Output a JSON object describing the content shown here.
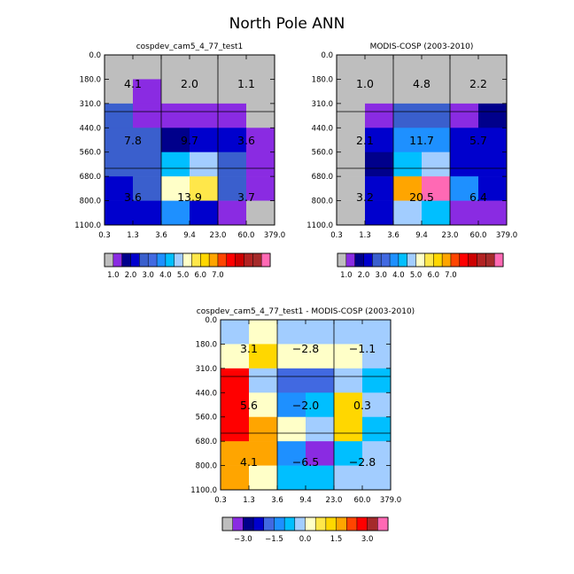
{
  "title": "North Pole ANN",
  "tau_ticks": [
    "0.3",
    "1.3",
    "3.6",
    "9.4",
    "23.0",
    "60.0",
    "379.0"
  ],
  "pres_ticks": [
    "0.0",
    "180.0",
    "310.0",
    "440.0",
    "560.0",
    "680.0",
    "800.0",
    "1100.0"
  ],
  "palettes": {
    "abs": [
      "#bebebe",
      "#8a2be2",
      "#00008b",
      "#0000cd",
      "#3a5fcd",
      "#4169e1",
      "#1e90ff",
      "#00bfff",
      "#a2cdff",
      "#ffffc8",
      "#ffe74a",
      "#ffd700",
      "#ffa500",
      "#ff4500",
      "#ff0000",
      "#cd0000",
      "#b22222",
      "#a52a2a",
      "#ff69b4"
    ],
    "diff": [
      "#bebebe",
      "#8a2be2",
      "#00008b",
      "#0000cd",
      "#4169e1",
      "#1e90ff",
      "#00bfff",
      "#a2cdff",
      "#ffffc8",
      "#ffe74a",
      "#ffd700",
      "#ffa500",
      "#ff4500",
      "#ff0000",
      "#a52a2a",
      "#ff69b4"
    ]
  },
  "chart_data": [
    {
      "type": "heatmap",
      "title": "cospdev_cam5_4_77_test1",
      "xlabel": "",
      "ylabel": "",
      "x_edges": [
        0.3,
        1.3,
        3.6,
        9.4,
        23.0,
        60.0,
        379.0
      ],
      "y_edges": [
        0.0,
        180.0,
        310.0,
        440.0,
        560.0,
        680.0,
        800.0,
        1100.0
      ],
      "palette": "abs",
      "cells": [
        [
          0,
          0,
          0,
          0,
          0,
          0
        ],
        [
          0,
          1,
          0,
          0,
          0,
          0
        ],
        [
          4,
          1,
          1,
          1,
          1,
          0
        ],
        [
          4,
          4,
          2,
          3,
          3,
          1
        ],
        [
          4,
          4,
          7,
          8,
          4,
          1
        ],
        [
          3,
          4,
          9,
          10,
          4,
          1
        ],
        [
          3,
          3,
          6,
          3,
          1,
          0
        ]
      ],
      "box_labels": [
        [
          "4.1",
          "2.0",
          "1.1"
        ],
        [
          "7.8",
          "9.7",
          "3.6"
        ],
        [
          "3.6",
          "13.9",
          "3.7"
        ]
      ],
      "colorbar_labels": [
        "1.0",
        "2.0",
        "3.0",
        "4.0",
        "5.0",
        "6.0",
        "7.0"
      ]
    },
    {
      "type": "heatmap",
      "title": "MODIS-COSP (2003-2010)",
      "xlabel": "",
      "ylabel": "",
      "x_edges": [
        0.3,
        1.3,
        3.6,
        9.4,
        23.0,
        60.0,
        379.0
      ],
      "y_edges": [
        0.0,
        180.0,
        310.0,
        440.0,
        560.0,
        680.0,
        800.0,
        1100.0
      ],
      "palette": "abs",
      "cells": [
        [
          0,
          0,
          0,
          0,
          0,
          0
        ],
        [
          0,
          0,
          0,
          0,
          0,
          0
        ],
        [
          0,
          1,
          4,
          4,
          1,
          2
        ],
        [
          0,
          3,
          6,
          6,
          3,
          3
        ],
        [
          0,
          2,
          7,
          8,
          3,
          3
        ],
        [
          0,
          3,
          12,
          18,
          6,
          3
        ],
        [
          0,
          3,
          8,
          7,
          1,
          1
        ]
      ],
      "box_labels": [
        [
          "1.0",
          "4.8",
          "2.2"
        ],
        [
          "2.1",
          "11.7",
          "5.7"
        ],
        [
          "3.2",
          "20.5",
          "6.4"
        ]
      ],
      "colorbar_labels": [
        "1.0",
        "2.0",
        "3.0",
        "4.0",
        "5.0",
        "6.0",
        "7.0"
      ]
    },
    {
      "type": "heatmap",
      "title": "cospdev_cam5_4_77_test1 - MODIS-COSP (2003-2010)",
      "xlabel": "",
      "ylabel": "",
      "x_edges": [
        0.3,
        1.3,
        3.6,
        9.4,
        23.0,
        60.0,
        379.0
      ],
      "y_edges": [
        0.0,
        180.0,
        310.0,
        440.0,
        560.0,
        680.0,
        800.0,
        1100.0
      ],
      "palette": "diff",
      "cells": [
        [
          7,
          8,
          7,
          7,
          7,
          7
        ],
        [
          8,
          10,
          8,
          8,
          8,
          7
        ],
        [
          13,
          7,
          4,
          4,
          7,
          6
        ],
        [
          13,
          8,
          5,
          6,
          10,
          7
        ],
        [
          13,
          11,
          8,
          7,
          10,
          6
        ],
        [
          11,
          11,
          5,
          1,
          6,
          7
        ],
        [
          11,
          8,
          6,
          6,
          7,
          7
        ]
      ],
      "box_labels": [
        [
          "3.1",
          "−2.8",
          "−1.1"
        ],
        [
          "5.6",
          "−2.0",
          "0.3"
        ],
        [
          "4.1",
          "−6.5",
          "−2.8"
        ]
      ],
      "colorbar_labels": [
        "−3.0",
        "−1.5",
        "0.0",
        "1.5",
        "3.0"
      ]
    }
  ]
}
